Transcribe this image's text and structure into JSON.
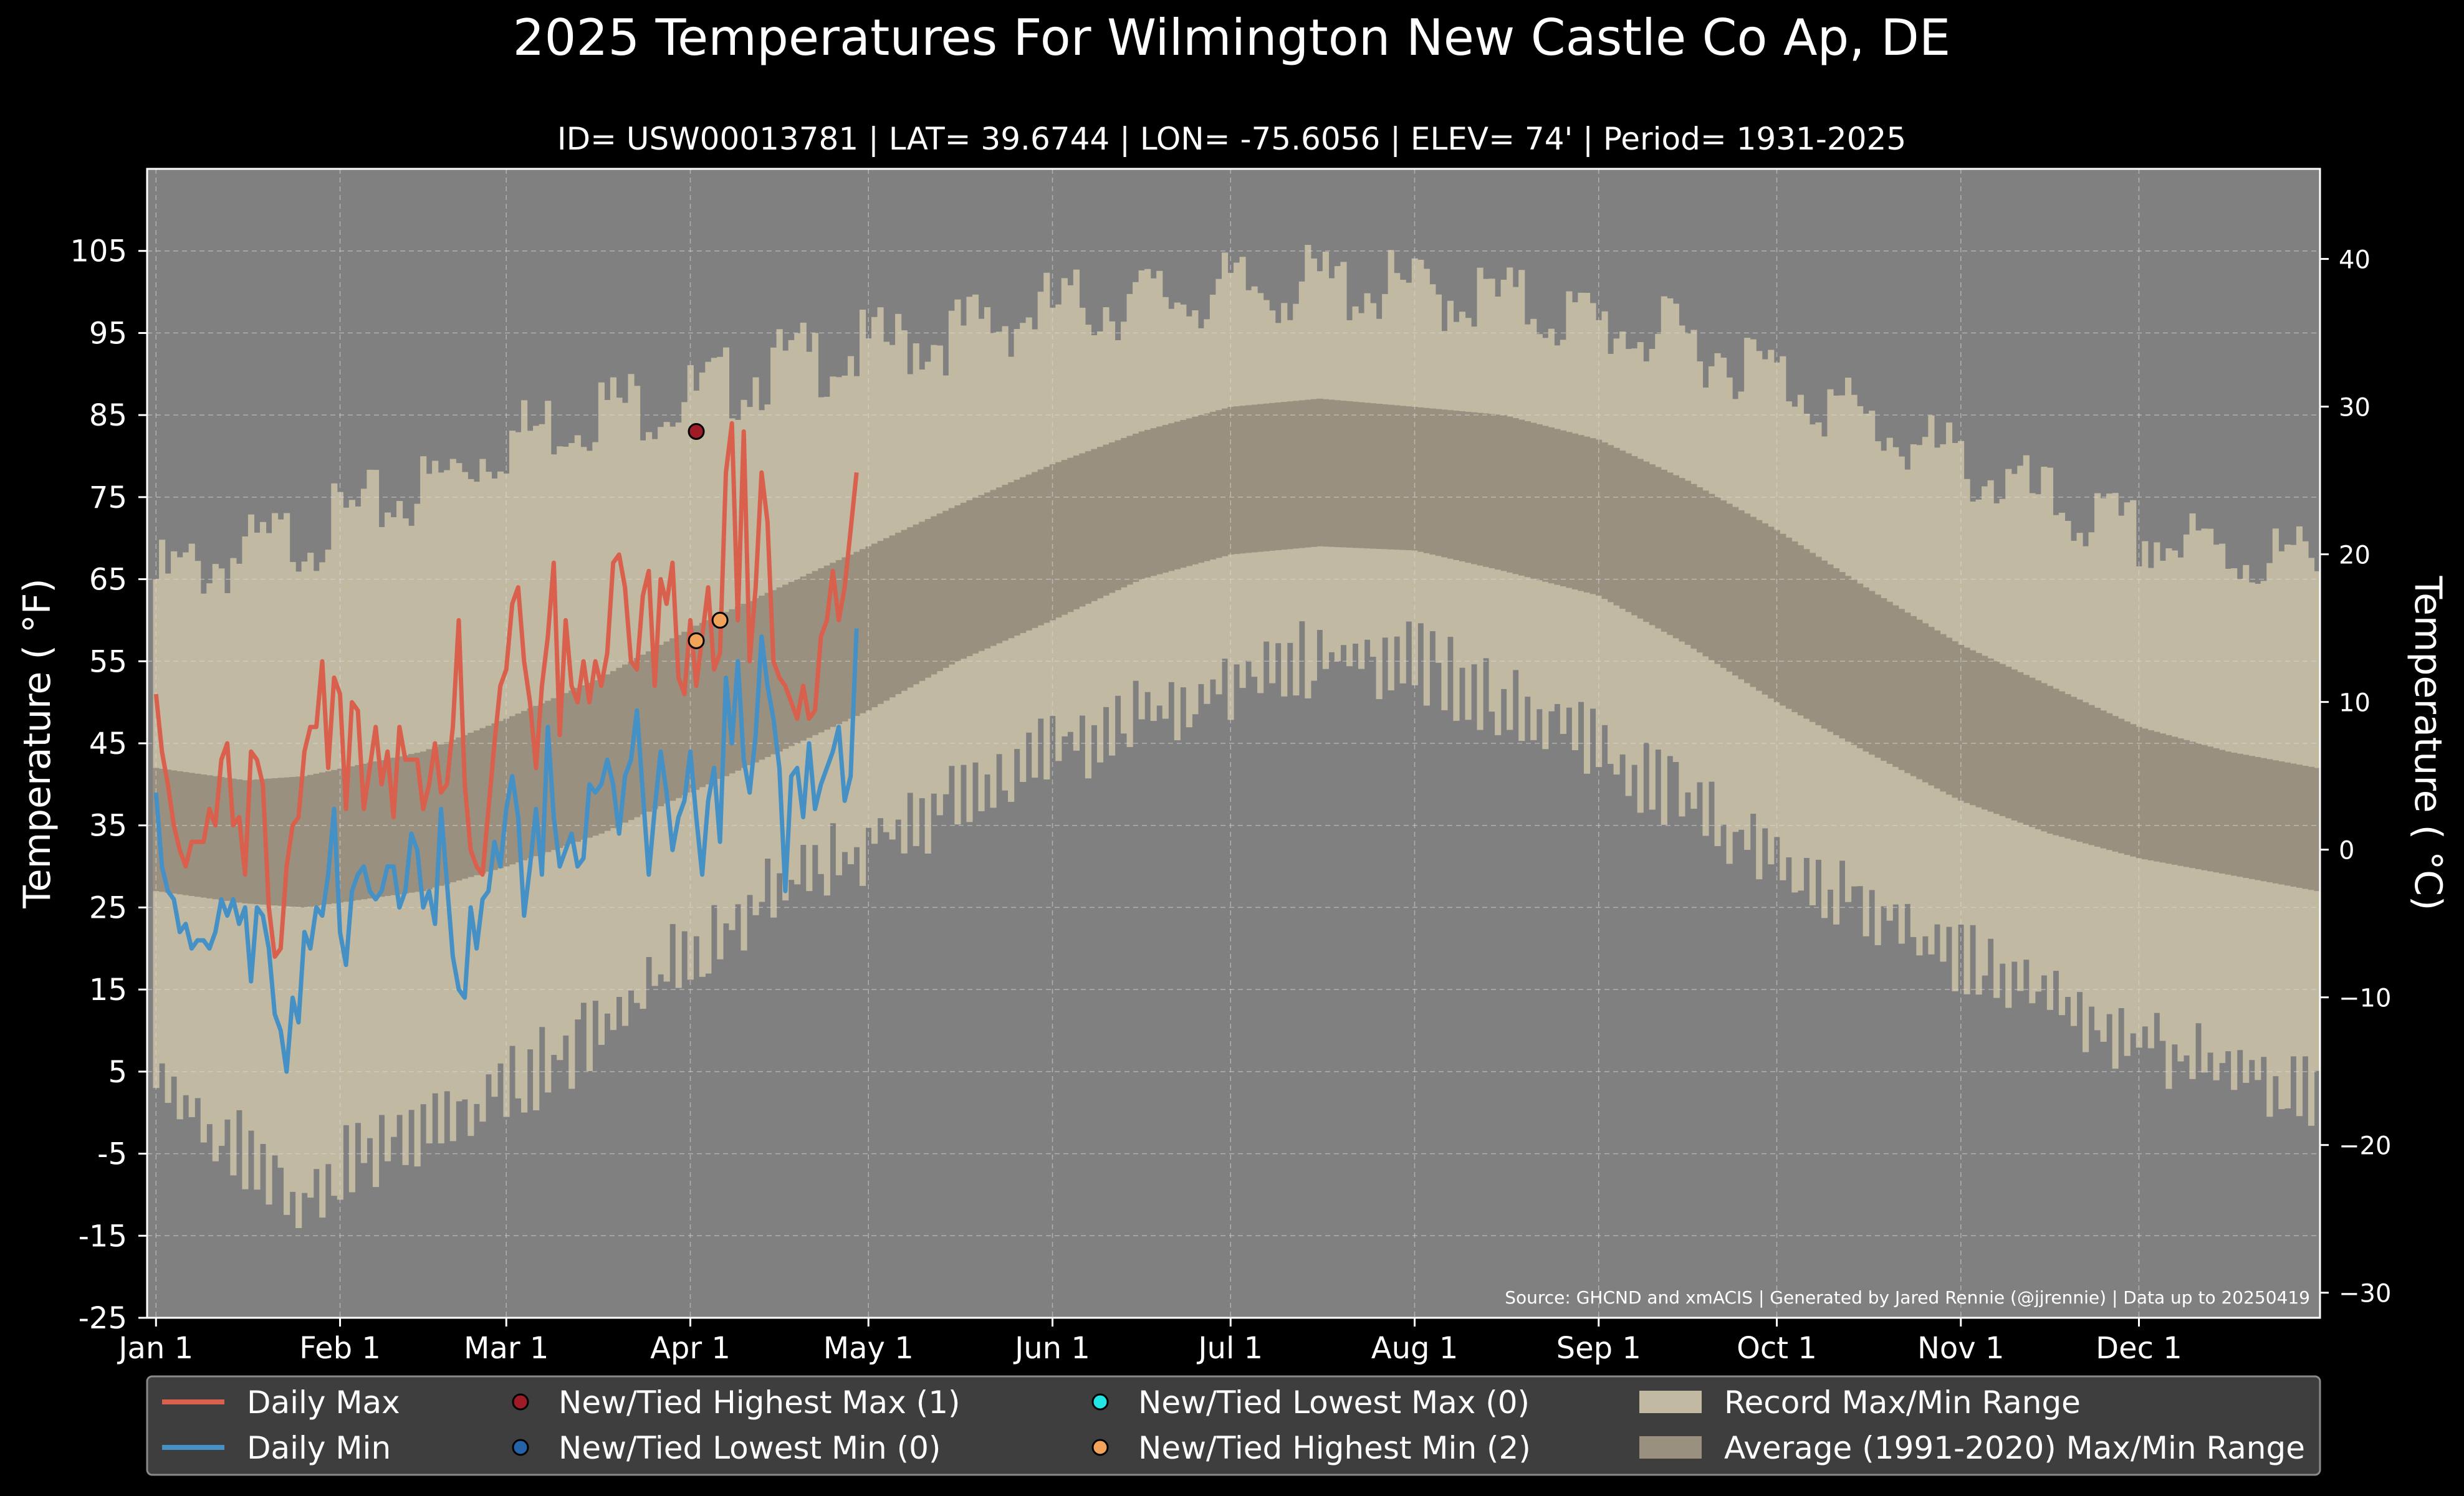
{
  "title": "2025 Temperatures For Wilmington New Castle Co Ap, DE",
  "subtitle": "ID= USW00013781 | LAT= 39.6744 | LON= -75.6056 | ELEV= 74' | Period= 1931-2025",
  "source_note": "Source: GHCND and xmACIS | Generated by Jared Rennie (@jjrennie) | Data up to 20250419",
  "colors": {
    "background": "#000000",
    "plot_background": "#808080",
    "record_range": "#c2b9a2",
    "normal_range": "#9a9080",
    "daily_max": "#d9604c",
    "daily_min": "#4590c4",
    "new_highest_max": "#a01b28",
    "new_lowest_min": "#2563a8",
    "new_lowest_max": "#22e6e6",
    "new_highest_min": "#f2a35a",
    "legend_bg": "#404040"
  },
  "legend": {
    "items": [
      {
        "label": "Daily Max",
        "type": "line",
        "color": "#d9604c"
      },
      {
        "label": "Daily Min",
        "type": "line",
        "color": "#4590c4"
      },
      {
        "label": "New/Tied Highest Max (1)",
        "type": "dot",
        "color": "#a01b28"
      },
      {
        "label": "New/Tied Lowest Min (0)",
        "type": "dot",
        "color": "#2563a8"
      },
      {
        "label": "New/Tied Lowest Max (0)",
        "type": "dot",
        "color": "#22e6e6"
      },
      {
        "label": "New/Tied Highest Min (2)",
        "type": "dot",
        "color": "#f2a35a"
      },
      {
        "label": "Record Max/Min Range",
        "type": "patch",
        "color": "#c2b9a2"
      },
      {
        "label": "Average (1991-2020) Max/Min Range",
        "type": "patch",
        "color": "#9a9080"
      }
    ]
  },
  "chart_data": {
    "type": "line",
    "x_unit": "day of year",
    "ylabel": "Temperature ($^\\circ$F)",
    "y2label": "Temperature ($^\\circ$C)",
    "ylim": [
      -25,
      115
    ],
    "y2lim": [
      -31.7,
      46.1
    ],
    "xlim": [
      -1.5,
      364.5
    ],
    "yticks": [
      -25,
      -15,
      -5,
      5,
      15,
      25,
      35,
      45,
      55,
      65,
      75,
      85,
      95,
      105
    ],
    "y2ticks": [
      -30,
      -20,
      -10,
      0,
      10,
      20,
      30,
      40
    ],
    "y2tick_labels": [
      "−30",
      "−20",
      "−10",
      "0",
      "10",
      "20",
      "30",
      "40"
    ],
    "xticks": [
      {
        "day": 0,
        "label": "Jan 1"
      },
      {
        "day": 31,
        "label": "Feb 1"
      },
      {
        "day": 59,
        "label": "Mar 1"
      },
      {
        "day": 90,
        "label": "Apr 1"
      },
      {
        "day": 120,
        "label": "May 1"
      },
      {
        "day": 151,
        "label": "Jun 1"
      },
      {
        "day": 181,
        "label": "Jul 1"
      },
      {
        "day": 212,
        "label": "Aug 1"
      },
      {
        "day": 243,
        "label": "Sep 1"
      },
      {
        "day": 273,
        "label": "Oct 1"
      },
      {
        "day": 304,
        "label": "Nov 1"
      },
      {
        "day": 334,
        "label": "Dec 1"
      }
    ],
    "grid": true,
    "legend_position": "below the plot",
    "record_max_approx": [
      {
        "day": 0,
        "value": 65
      },
      {
        "day": 15,
        "value": 68
      },
      {
        "day": 31,
        "value": 72
      },
      {
        "day": 45,
        "value": 76
      },
      {
        "day": 59,
        "value": 82
      },
      {
        "day": 75,
        "value": 86
      },
      {
        "day": 90,
        "value": 87
      },
      {
        "day": 105,
        "value": 91
      },
      {
        "day": 120,
        "value": 93
      },
      {
        "day": 135,
        "value": 95
      },
      {
        "day": 151,
        "value": 98
      },
      {
        "day": 166,
        "value": 99
      },
      {
        "day": 181,
        "value": 100
      },
      {
        "day": 196,
        "value": 101
      },
      {
        "day": 212,
        "value": 100
      },
      {
        "day": 227,
        "value": 99
      },
      {
        "day": 243,
        "value": 96
      },
      {
        "day": 258,
        "value": 94
      },
      {
        "day": 273,
        "value": 90
      },
      {
        "day": 288,
        "value": 84
      },
      {
        "day": 304,
        "value": 79
      },
      {
        "day": 319,
        "value": 74
      },
      {
        "day": 334,
        "value": 70
      },
      {
        "day": 349,
        "value": 68
      },
      {
        "day": 364,
        "value": 67
      }
    ],
    "record_min_approx": [
      {
        "day": 0,
        "value": 3
      },
      {
        "day": 15,
        "value": -5
      },
      {
        "day": 25,
        "value": -11
      },
      {
        "day": 31,
        "value": -6
      },
      {
        "day": 45,
        "value": -3
      },
      {
        "day": 59,
        "value": 3
      },
      {
        "day": 75,
        "value": 10
      },
      {
        "day": 90,
        "value": 20
      },
      {
        "day": 105,
        "value": 27
      },
      {
        "day": 120,
        "value": 33
      },
      {
        "day": 135,
        "value": 38
      },
      {
        "day": 151,
        "value": 44
      },
      {
        "day": 166,
        "value": 48
      },
      {
        "day": 181,
        "value": 52
      },
      {
        "day": 196,
        "value": 56
      },
      {
        "day": 212,
        "value": 55
      },
      {
        "day": 227,
        "value": 50
      },
      {
        "day": 243,
        "value": 44
      },
      {
        "day": 258,
        "value": 38
      },
      {
        "day": 273,
        "value": 30
      },
      {
        "day": 288,
        "value": 25
      },
      {
        "day": 304,
        "value": 19
      },
      {
        "day": 319,
        "value": 13
      },
      {
        "day": 334,
        "value": 9
      },
      {
        "day": 349,
        "value": 5
      },
      {
        "day": 364,
        "value": 3
      }
    ],
    "normal_max_approx": [
      {
        "day": 0,
        "value": 42
      },
      {
        "day": 15,
        "value": 40.5
      },
      {
        "day": 25,
        "value": 41
      },
      {
        "day": 45,
        "value": 44
      },
      {
        "day": 59,
        "value": 48
      },
      {
        "day": 75,
        "value": 53
      },
      {
        "day": 90,
        "value": 59
      },
      {
        "day": 105,
        "value": 64
      },
      {
        "day": 120,
        "value": 69
      },
      {
        "day": 135,
        "value": 74
      },
      {
        "day": 151,
        "value": 79
      },
      {
        "day": 166,
        "value": 83
      },
      {
        "day": 181,
        "value": 86
      },
      {
        "day": 196,
        "value": 87
      },
      {
        "day": 212,
        "value": 86
      },
      {
        "day": 227,
        "value": 85
      },
      {
        "day": 243,
        "value": 82
      },
      {
        "day": 258,
        "value": 77
      },
      {
        "day": 273,
        "value": 71
      },
      {
        "day": 288,
        "value": 64
      },
      {
        "day": 304,
        "value": 57
      },
      {
        "day": 319,
        "value": 52
      },
      {
        "day": 334,
        "value": 47
      },
      {
        "day": 349,
        "value": 44
      },
      {
        "day": 364,
        "value": 42
      }
    ],
    "normal_min_approx": [
      {
        "day": 0,
        "value": 27
      },
      {
        "day": 15,
        "value": 25.5
      },
      {
        "day": 25,
        "value": 25
      },
      {
        "day": 45,
        "value": 27
      },
      {
        "day": 59,
        "value": 30
      },
      {
        "day": 75,
        "value": 34
      },
      {
        "day": 90,
        "value": 39
      },
      {
        "day": 105,
        "value": 44
      },
      {
        "day": 120,
        "value": 49
      },
      {
        "day": 135,
        "value": 55
      },
      {
        "day": 151,
        "value": 60
      },
      {
        "day": 166,
        "value": 65
      },
      {
        "day": 181,
        "value": 68
      },
      {
        "day": 196,
        "value": 69
      },
      {
        "day": 212,
        "value": 68.5
      },
      {
        "day": 227,
        "value": 66
      },
      {
        "day": 243,
        "value": 63
      },
      {
        "day": 258,
        "value": 57
      },
      {
        "day": 273,
        "value": 50
      },
      {
        "day": 288,
        "value": 44
      },
      {
        "day": 304,
        "value": 38
      },
      {
        "day": 319,
        "value": 34
      },
      {
        "day": 334,
        "value": 31
      },
      {
        "day": 349,
        "value": 29
      },
      {
        "day": 364,
        "value": 27
      }
    ],
    "series": [
      {
        "name": "Daily Max",
        "color": "#d9604c",
        "start_day": 0,
        "values": [
          51,
          44,
          40,
          35,
          32,
          30,
          33,
          33,
          33,
          37,
          35,
          43,
          45,
          35,
          36,
          29,
          44,
          43,
          40,
          25,
          19,
          20,
          30,
          35,
          36,
          44,
          47,
          47,
          55,
          42,
          53,
          51,
          37,
          50,
          49,
          37,
          42,
          47,
          40,
          44,
          36,
          47,
          43,
          43,
          43,
          37,
          40,
          45,
          39,
          40,
          47,
          60,
          40,
          32,
          30,
          29,
          37,
          45,
          52,
          54,
          62,
          64,
          55,
          50,
          42,
          52,
          58,
          67,
          46,
          60,
          52,
          50,
          55,
          50,
          55,
          52,
          56,
          67,
          68,
          64,
          55,
          54,
          63,
          66,
          52,
          65,
          62,
          67,
          53,
          51,
          60,
          52,
          58,
          64,
          54,
          56,
          78,
          84,
          60,
          83,
          55,
          64,
          78,
          72,
          55,
          53,
          52,
          50,
          48,
          52,
          48,
          49,
          58,
          60,
          66,
          60,
          64,
          71,
          78
        ]
      },
      {
        "name": "Daily Min",
        "color": "#4590c4",
        "start_day": 0,
        "values": [
          39,
          30,
          27,
          26,
          22,
          23,
          20,
          21,
          21,
          20,
          22,
          26,
          24,
          26,
          23,
          25,
          16,
          25,
          24,
          20,
          12,
          10,
          5,
          14,
          11,
          22,
          20,
          25,
          24,
          29,
          37,
          22,
          18,
          27,
          29,
          30,
          27,
          26,
          27,
          30,
          30,
          25,
          27,
          34,
          32,
          25,
          27,
          23,
          37,
          28,
          19,
          15,
          14,
          25,
          20,
          26,
          27,
          33,
          30,
          37,
          41,
          36,
          24,
          30,
          37,
          29,
          47,
          36,
          30,
          32,
          34,
          30,
          31,
          40,
          39,
          40,
          43,
          40,
          34,
          41,
          43,
          49,
          39,
          29,
          37,
          44,
          39,
          32,
          36,
          38,
          44,
          36,
          29,
          38,
          42,
          33,
          53,
          45,
          55,
          43,
          39,
          46,
          58,
          52,
          48,
          42,
          27,
          41,
          42,
          36,
          45,
          37,
          40,
          42,
          44,
          47,
          38,
          41,
          59
        ]
      }
    ],
    "record_points": [
      {
        "series": "New/Tied Highest Max",
        "day": 91,
        "value": 83
      },
      {
        "series": "New/Tied Highest Min",
        "day": 91,
        "value": 57.5
      },
      {
        "series": "New/Tied Highest Min",
        "day": 95,
        "value": 60
      }
    ]
  }
}
